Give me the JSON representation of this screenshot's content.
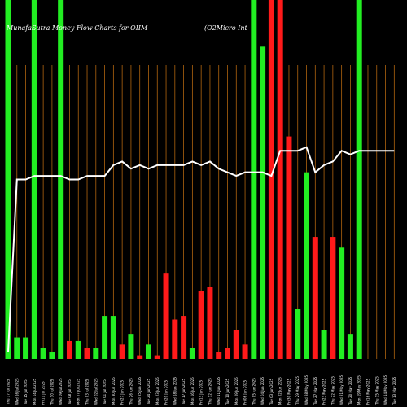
{
  "chart_data": {
    "type": "bar",
    "title": "MunafaSutra  Money Flow  Charts for OIIM",
    "subtitle": "(O2Micro  Int",
    "colors": {
      "background": "#000000",
      "inflow": "#22ee22",
      "outflow": "#ff1a1a",
      "line": "#ffffff",
      "grid": "#b0650f"
    },
    "categories": [
      "Thu 17 Jul 2025",
      "Wed 16 Jul 2025",
      "Tue 15 Jul 2025",
      "Mon 14 Jul 2025",
      "Fri 11 Jul 2025",
      "Thu 10 Jul 2025",
      "Wed 09 Jul 2025",
      "Tue 08 Jul 2025",
      "Mon 07 Jul 2025",
      "Thu 03 Jul 2025",
      "Wed 02 Jul 2025",
      "Tue 01 Jul 2025",
      "Mon 30 Jun 2025",
      "Fri 27 Jun 2025",
      "Thu 26 Jun 2025",
      "Wed 25 Jun 2025",
      "Tue 24 Jun 2025",
      "Mon 23 Jun 2025",
      "Fri 20 Jun 2025",
      "Wed 18 Jun 2025",
      "Tue 17 Jun 2025",
      "Mon 16 Jun 2025",
      "Fri 13 Jun 2025",
      "Thu 12 Jun 2025",
      "Wed 11 Jun 2025",
      "Tue 10 Jun 2025",
      "Mon 09 Jun 2025",
      "Fri 06 Jun 2025",
      "Thu 05 Jun 2025",
      "Wed 04 Jun 2025",
      "Tue 03 Jun 2025",
      "Mon 02 Jun 2025",
      "Fri 30 May 2025",
      "Thu 29 May 2025",
      "Wed 28 May 2025",
      "Tue 27 May 2025",
      "Fri 23 May 2025",
      "Thu 22 May 2025",
      "Wed 21 May 2025",
      "Tue 20 May 2025",
      "Mon 19 May 2025",
      "Fri 16 May 2025",
      "Thu 15 May 2025",
      "Wed 14 May 2025",
      "Tue 13 May 2025"
    ],
    "series": [
      {
        "kind": "money-flow-bars",
        "values": [
          100,
          6,
          6,
          100,
          3,
          2,
          100,
          5,
          5,
          3,
          3,
          12,
          12,
          4,
          7,
          1,
          4,
          1,
          24,
          11,
          12,
          3,
          19,
          20,
          2,
          3,
          8,
          4,
          100,
          87,
          100,
          100,
          62,
          14,
          52,
          34,
          8,
          34,
          31,
          7,
          100,
          0,
          0,
          0,
          0
        ],
        "direction": [
          "in",
          "in",
          "in",
          "in",
          "in",
          "in",
          "in",
          "out",
          "in",
          "out",
          "in",
          "in",
          "in",
          "out",
          "in",
          "out",
          "in",
          "out",
          "out",
          "out",
          "out",
          "in",
          "out",
          "out",
          "out",
          "out",
          "out",
          "out",
          "in",
          "in",
          "out",
          "out",
          "out",
          "in",
          "in",
          "out",
          "in",
          "out",
          "in",
          "in",
          "in",
          "in",
          "in",
          "in",
          "in"
        ]
      },
      {
        "kind": "money-flow-line",
        "values": [
          2,
          50,
          50,
          51,
          51,
          51,
          51,
          50,
          50,
          51,
          51,
          51,
          54,
          55,
          53,
          54,
          53,
          54,
          54,
          54,
          54,
          55,
          54,
          55,
          53,
          52,
          51,
          52,
          52,
          52,
          51,
          58,
          58,
          58,
          59,
          52,
          54,
          55,
          58,
          57,
          58,
          58,
          58,
          58,
          58
        ]
      }
    ],
    "ylim": [
      0,
      100
    ],
    "grid": true
  }
}
